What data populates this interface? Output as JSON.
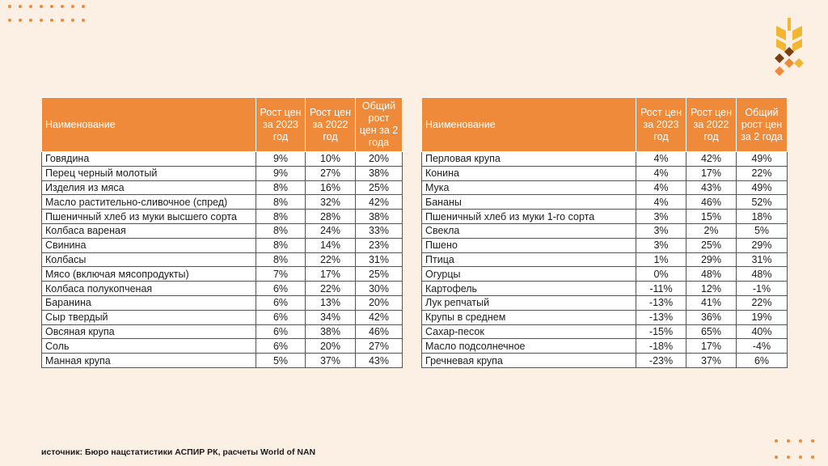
{
  "colors": {
    "accent": "#ee8a3a",
    "background": "#fcefe4",
    "logo_yellow": "#f2b632",
    "logo_brown": "#7a3e12"
  },
  "icons": {
    "logo": "wheat-logo-icon",
    "dots": "decorative-dots"
  },
  "tables": [
    {
      "headers": [
        "Наименование",
        "Рост цен за 2023 год",
        "Рост цен за 2022 год",
        "Общий рост цен за 2 года"
      ],
      "rows": [
        [
          "Говядина",
          "9%",
          "10%",
          "20%"
        ],
        [
          "Перец черный молотый",
          "9%",
          "27%",
          "38%"
        ],
        [
          "Изделия из мяса",
          "8%",
          "16%",
          "25%"
        ],
        [
          "Масло растительно-сливочное (спред)",
          "8%",
          "32%",
          "42%"
        ],
        [
          "Пшеничный хлеб из муки высшего сорта",
          "8%",
          "28%",
          "38%"
        ],
        [
          "Колбаса вареная",
          "8%",
          "24%",
          "33%"
        ],
        [
          "Свинина",
          "8%",
          "14%",
          "23%"
        ],
        [
          "Колбасы",
          "8%",
          "22%",
          "31%"
        ],
        [
          "Мясо (включая мясопродукты)",
          "7%",
          "17%",
          "25%"
        ],
        [
          "Колбаса полукопченая",
          "6%",
          "22%",
          "30%"
        ],
        [
          "Баранина",
          "6%",
          "13%",
          "20%"
        ],
        [
          "Сыр твердый",
          "6%",
          "34%",
          "42%"
        ],
        [
          "Овсяная крупа",
          "6%",
          "38%",
          "46%"
        ],
        [
          "Соль",
          "6%",
          "20%",
          "27%"
        ],
        [
          "Манная крупа",
          "5%",
          "37%",
          "43%"
        ]
      ]
    },
    {
      "headers": [
        "Наименование",
        "Рост цен за 2023 год",
        "Рост цен за 2022 год",
        "Общий рост цен за 2 года"
      ],
      "rows": [
        [
          "Перловая крупа",
          "4%",
          "42%",
          "49%"
        ],
        [
          "Конина",
          "4%",
          "17%",
          "22%"
        ],
        [
          "Мука",
          "4%",
          "43%",
          "49%"
        ],
        [
          "Бананы",
          "4%",
          "46%",
          "52%"
        ],
        [
          "Пшеничный хлеб из муки 1-го сорта",
          "3%",
          "15%",
          "18%"
        ],
        [
          "Свекла",
          "3%",
          "2%",
          "5%"
        ],
        [
          "Пшено",
          "3%",
          "25%",
          "29%"
        ],
        [
          "Птица",
          "1%",
          "29%",
          "31%"
        ],
        [
          "Огурцы",
          "0%",
          "48%",
          "48%"
        ],
        [
          "Картофель",
          "-11%",
          "12%",
          "-1%"
        ],
        [
          "Лук репчатый",
          "-13%",
          "41%",
          "22%"
        ],
        [
          "Крупы в среднем",
          "-13%",
          "36%",
          "19%"
        ],
        [
          "Сахар-песок",
          "-15%",
          "65%",
          "40%"
        ],
        [
          "Масло подсолнечное",
          "-18%",
          "17%",
          "-4%"
        ],
        [
          "Гречневая крупа",
          "-23%",
          "37%",
          "6%"
        ]
      ]
    }
  ],
  "source": "источник: Бюро нацстатистики АСПИР РК, расчеты World of NAN"
}
